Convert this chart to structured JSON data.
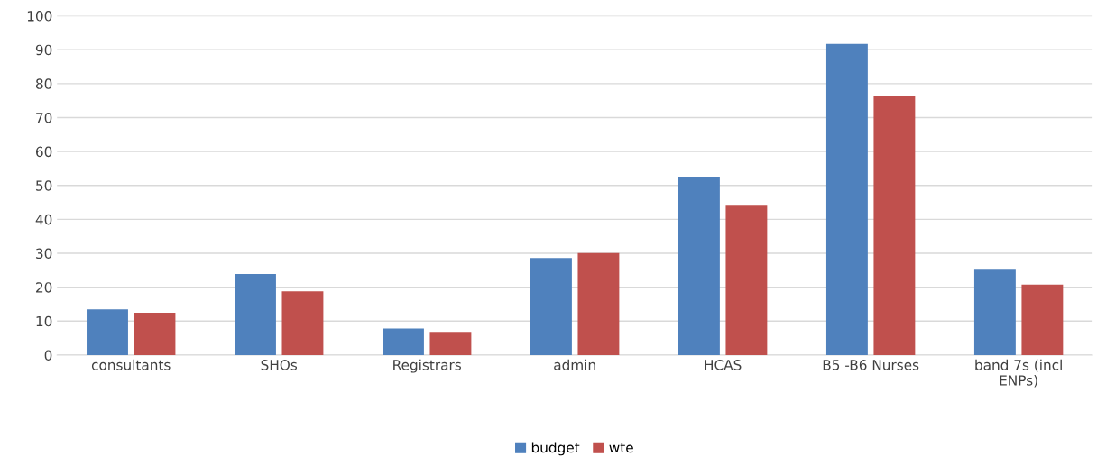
{
  "chart_data": {
    "type": "bar",
    "categories": [
      "consultants",
      "SHOs",
      "Registrars",
      "admin",
      "HCAS",
      "B5 -B6 Nurses",
      "band 7s (incl\nENPs)"
    ],
    "series": [
      {
        "name": "budget",
        "color": "#4f81bd",
        "values": [
          13.5,
          23.9,
          7.8,
          28.6,
          52.6,
          91.7,
          25.4
        ]
      },
      {
        "name": "wte",
        "color": "#c0504d",
        "values": [
          12.5,
          18.8,
          6.8,
          30.1,
          44.3,
          76.5,
          20.8
        ]
      }
    ],
    "ylim": [
      0,
      100
    ],
    "yticks": [
      0,
      10,
      20,
      30,
      40,
      50,
      60,
      70,
      80,
      90,
      100
    ],
    "grid": "y",
    "legend": "bottom"
  }
}
